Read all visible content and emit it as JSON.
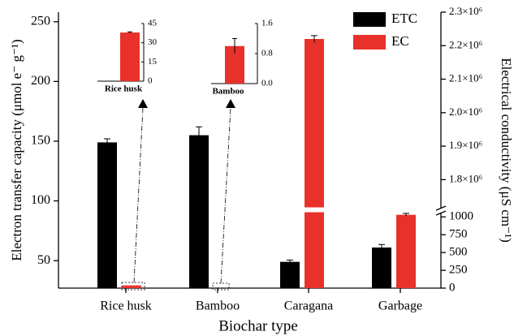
{
  "chart_data": {
    "type": "bar",
    "x_label": "Biochar type",
    "y_label": "Electron transfer capacity (μmol e⁻ g⁻¹)",
    "y2_label": "Electrical conductivity (μS cm⁻¹)",
    "categories": [
      "Rice husk",
      "Bamboo",
      "Caragana",
      "Garbage"
    ],
    "series": [
      {
        "name": "ETC",
        "color": "#000000",
        "values": [
          149,
          155,
          49,
          61
        ],
        "errors": [
          3,
          7,
          1.5,
          2.5
        ]
      },
      {
        "name": "EC",
        "color": "#e8312a",
        "axis": "y2",
        "values": [
          38,
          1.0,
          2220000,
          1030
        ],
        "errors": [
          0.5,
          0.2,
          10000,
          20
        ]
      }
    ],
    "ylim": [
      27,
      258
    ],
    "yticks": [
      50,
      100,
      150,
      200,
      250
    ],
    "y2lim": [
      0,
      2300000
    ],
    "y2_break": [
      1100,
      1710000
    ],
    "y2ticks": [
      0,
      250,
      500,
      750,
      1000,
      {
        "value": 1800000,
        "label": "1.8×10⁶"
      },
      {
        "value": 1900000,
        "label": "1.9×10⁶"
      },
      {
        "value": 2000000,
        "label": "2.0×10⁶"
      },
      {
        "value": 2100000,
        "label": "2.1×10⁶"
      },
      {
        "value": 2200000,
        "label": "2.2×10⁶"
      },
      {
        "value": 2300000,
        "label": "2.3×10⁶"
      }
    ],
    "legend": "upper right",
    "insets": [
      {
        "ylim": [
          0,
          45
        ],
        "yticks": [
          0,
          15,
          30,
          45
        ]
      },
      {
        "ylim": [
          0,
          1.6
        ],
        "yticks": [
          {
            "value": 0,
            "label": "0.0"
          },
          0.8,
          1.6
        ]
      }
    ]
  }
}
